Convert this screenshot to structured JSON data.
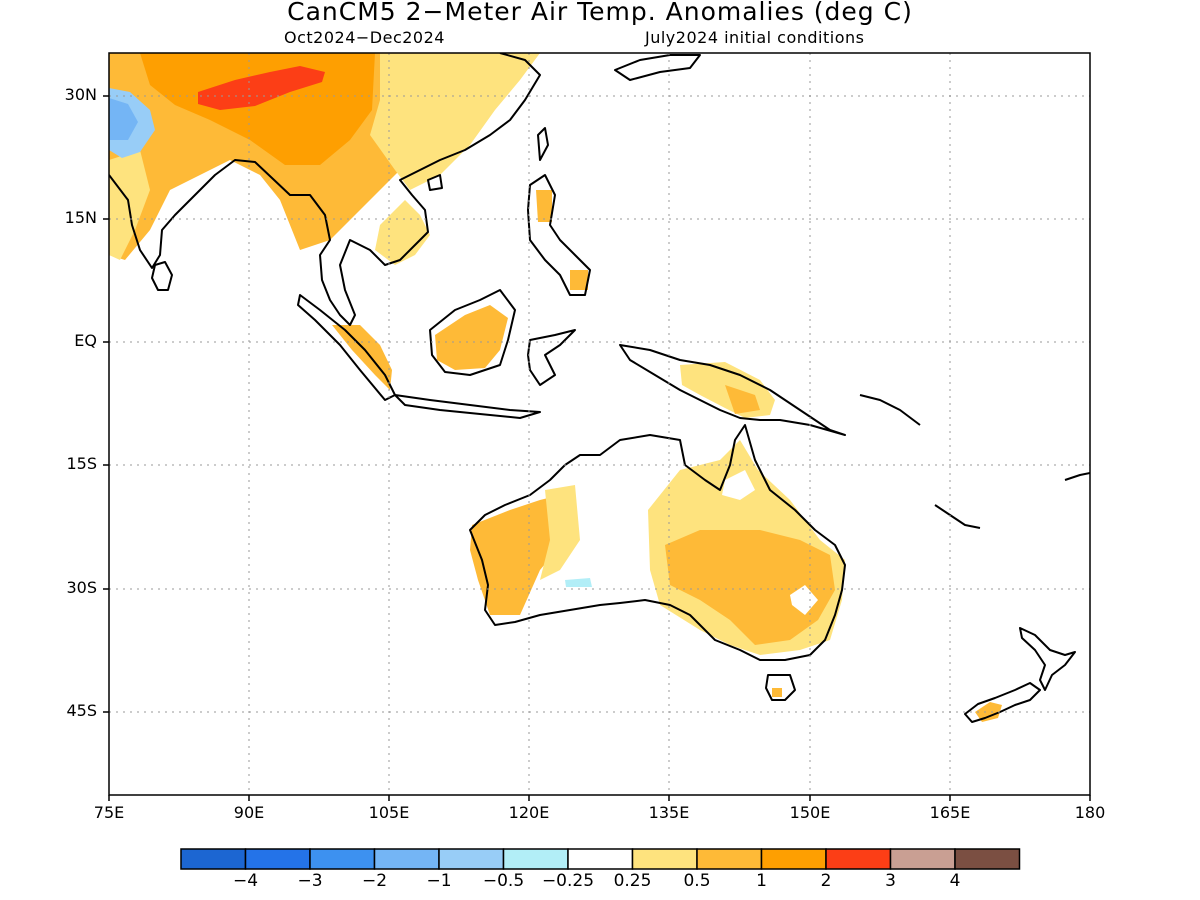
{
  "title": "CanCM5 2−Meter Air Temp. Anomalies (deg C)",
  "period": "Oct2024−Dec2024",
  "init": "July2024 initial conditions",
  "lat_labels": [
    "30N",
    "15N",
    "EQ",
    "15S",
    "30S",
    "45S"
  ],
  "lon_labels": [
    "75E",
    "90E",
    "105E",
    "120E",
    "135E",
    "150E",
    "165E",
    "180"
  ],
  "colorbar": {
    "colors": [
      "#1c66d2",
      "#2473e8",
      "#3d91f0",
      "#74b5f5",
      "#98cdf7",
      "#b2eef7",
      "#ffffff",
      "#fee37e",
      "#feba37",
      "#fe9f01",
      "#fc3e16",
      "#c99f93",
      "#7b4f42"
    ],
    "labels": [
      "−4",
      "−3",
      "−2",
      "−1",
      "−0.5",
      "−0.25",
      "0.25",
      "0.5",
      "1",
      "2",
      "3",
      "4"
    ]
  },
  "map": {
    "domain_lon": [
      75,
      180
    ],
    "domain_lat": [
      -55,
      35
    ],
    "anomaly_colors": {
      "cool": "#98cdf7",
      "light": "#fee37e",
      "moderate": "#feba37",
      "warm": "#fe9f01",
      "hot": "#fc3e16"
    }
  }
}
